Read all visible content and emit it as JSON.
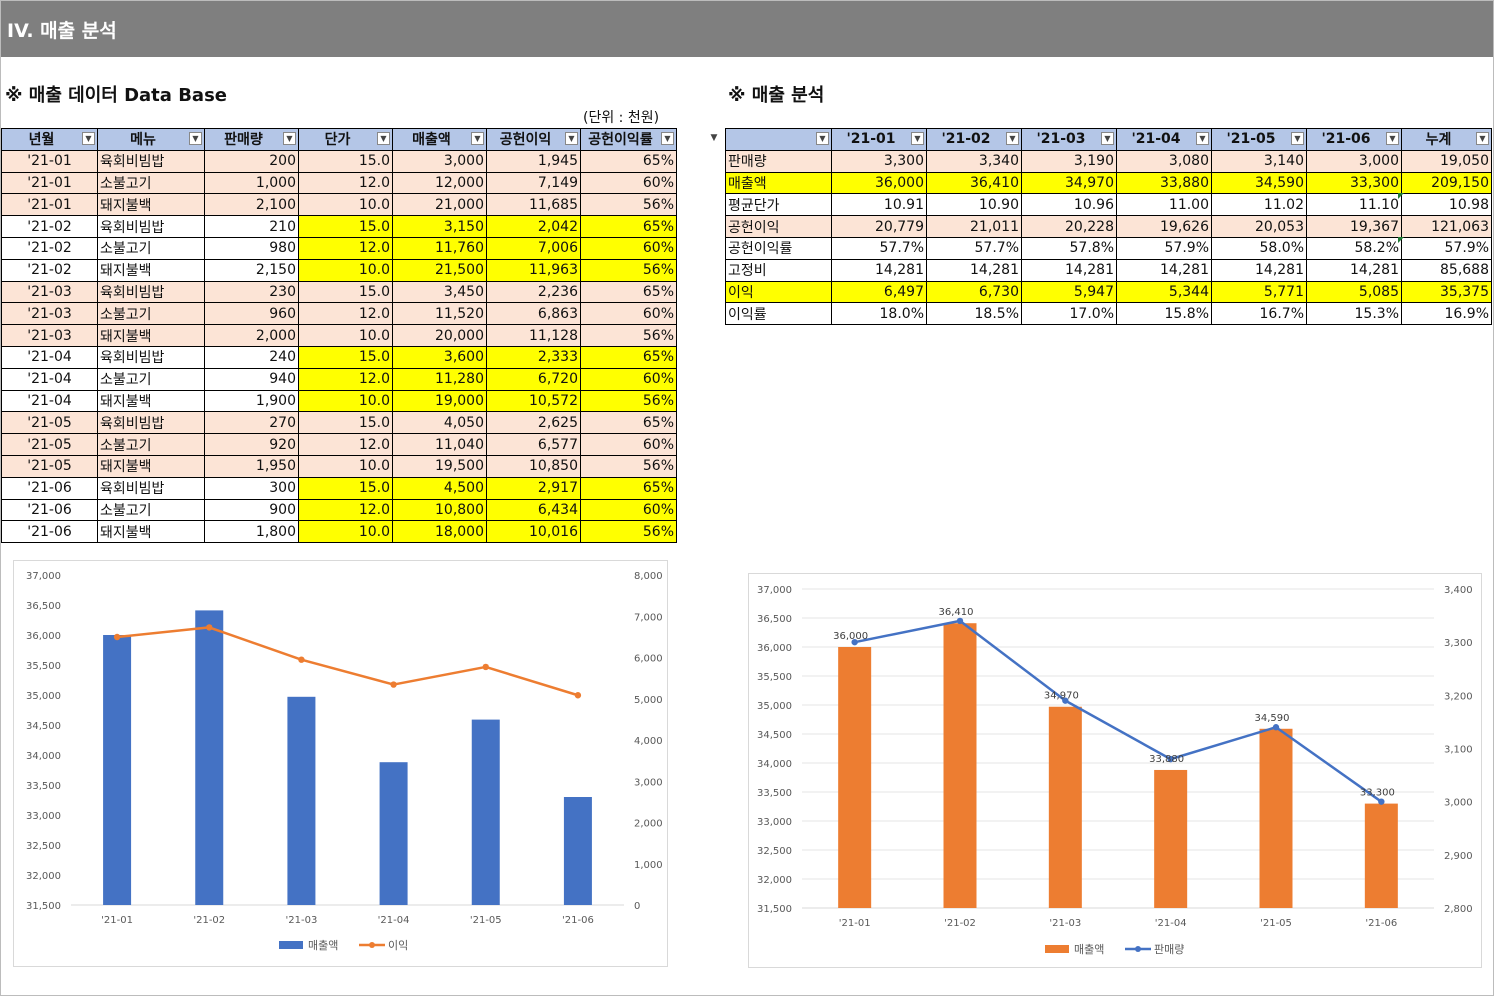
{
  "banner": {
    "title": "IV. 매출 분석"
  },
  "left_section": {
    "title": "※ 매출 데이터 Data Base",
    "unit": "(단위 : 천원)"
  },
  "right_section": {
    "title": "※ 매출 분석"
  },
  "db_table": {
    "headers": [
      "년월",
      "메뉴",
      "판매량",
      "단가",
      "매출액",
      "공헌이익",
      "공헌이익률"
    ],
    "rows": [
      [
        "'21-01",
        "육회비빔밥",
        "200",
        "15.0",
        "3,000",
        "1,945",
        "65%"
      ],
      [
        "'21-01",
        "소불고기",
        "1,000",
        "12.0",
        "12,000",
        "7,149",
        "60%"
      ],
      [
        "'21-01",
        "돼지불백",
        "2,100",
        "10.0",
        "21,000",
        "11,685",
        "56%"
      ],
      [
        "'21-02",
        "육회비빔밥",
        "210",
        "15.0",
        "3,150",
        "2,042",
        "65%"
      ],
      [
        "'21-02",
        "소불고기",
        "980",
        "12.0",
        "11,760",
        "7,006",
        "60%"
      ],
      [
        "'21-02",
        "돼지불백",
        "2,150",
        "10.0",
        "21,500",
        "11,963",
        "56%"
      ],
      [
        "'21-03",
        "육회비빔밥",
        "230",
        "15.0",
        "3,450",
        "2,236",
        "65%"
      ],
      [
        "'21-03",
        "소불고기",
        "960",
        "12.0",
        "11,520",
        "6,863",
        "60%"
      ],
      [
        "'21-03",
        "돼지불백",
        "2,000",
        "10.0",
        "20,000",
        "11,128",
        "56%"
      ],
      [
        "'21-04",
        "육회비빔밥",
        "240",
        "15.0",
        "3,600",
        "2,333",
        "65%"
      ],
      [
        "'21-04",
        "소불고기",
        "940",
        "12.0",
        "11,280",
        "6,720",
        "60%"
      ],
      [
        "'21-04",
        "돼지불백",
        "1,900",
        "10.0",
        "19,000",
        "10,572",
        "56%"
      ],
      [
        "'21-05",
        "육회비빔밥",
        "270",
        "15.0",
        "4,050",
        "2,625",
        "65%"
      ],
      [
        "'21-05",
        "소불고기",
        "920",
        "12.0",
        "11,040",
        "6,577",
        "60%"
      ],
      [
        "'21-05",
        "돼지불백",
        "1,950",
        "10.0",
        "19,500",
        "10,850",
        "56%"
      ],
      [
        "'21-06",
        "육회비빔밥",
        "300",
        "15.0",
        "4,500",
        "2,917",
        "65%"
      ],
      [
        "'21-06",
        "소불고기",
        "900",
        "12.0",
        "10,800",
        "6,434",
        "60%"
      ],
      [
        "'21-06",
        "돼지불백",
        "1,800",
        "10.0",
        "18,000",
        "10,016",
        "56%"
      ]
    ]
  },
  "summary_table": {
    "headers": [
      "",
      "'21-01",
      "'21-02",
      "'21-03",
      "'21-04",
      "'21-05",
      "'21-06",
      "누계"
    ],
    "rows": [
      {
        "label": "판매량",
        "values": [
          "3,300",
          "3,340",
          "3,190",
          "3,080",
          "3,140",
          "3,000",
          "19,050"
        ],
        "style": "pink"
      },
      {
        "label": "매출액",
        "values": [
          "36,000",
          "36,410",
          "34,970",
          "33,880",
          "34,590",
          "33,300",
          "209,150"
        ],
        "style": "yel"
      },
      {
        "label": "평균단가",
        "values": [
          "10.91",
          "10.90",
          "10.96",
          "11.00",
          "11.02",
          "11.10",
          "10.98"
        ],
        "style": ""
      },
      {
        "label": "공헌이익",
        "values": [
          "20,779",
          "21,011",
          "20,228",
          "19,626",
          "20,053",
          "19,367",
          "121,063"
        ],
        "style": "pink"
      },
      {
        "label": "공헌이익률",
        "values": [
          "57.7%",
          "57.7%",
          "57.8%",
          "57.9%",
          "58.0%",
          "58.2%",
          "57.9%"
        ],
        "style": ""
      },
      {
        "label": "고정비",
        "values": [
          "14,281",
          "14,281",
          "14,281",
          "14,281",
          "14,281",
          "14,281",
          "85,688"
        ],
        "style": ""
      },
      {
        "label": "이익",
        "values": [
          "6,497",
          "6,730",
          "5,947",
          "5,344",
          "5,771",
          "5,085",
          "35,375"
        ],
        "style": "yel"
      },
      {
        "label": "이익률",
        "values": [
          "18.0%",
          "18.5%",
          "17.0%",
          "15.8%",
          "16.7%",
          "15.3%",
          "16.9%"
        ],
        "style": ""
      }
    ]
  },
  "colors": {
    "blue_bar": "#4472c4",
    "orange": "#ed7d31",
    "pink": "#fce4d6",
    "yellow": "#ffff00",
    "header": "#b4c6e7"
  },
  "chart_data": [
    {
      "type": "bar",
      "categories": [
        "'21-01",
        "'21-02",
        "'21-03",
        "'21-04",
        "'21-05",
        "'21-06"
      ],
      "series": [
        {
          "name": "매출액",
          "type": "bar",
          "axis": "left",
          "color": "#4472c4",
          "values": [
            36000,
            36410,
            34970,
            33880,
            34590,
            33300
          ]
        },
        {
          "name": "이익",
          "type": "line",
          "axis": "right",
          "color": "#ed7d31",
          "values": [
            6497,
            6730,
            5947,
            5344,
            5771,
            5085
          ]
        }
      ],
      "ylim": [
        31500,
        37000
      ],
      "y_ticks": [
        "31,500",
        "32,000",
        "32,500",
        "33,000",
        "33,500",
        "34,000",
        "34,500",
        "35,000",
        "35,500",
        "36,000",
        "36,500",
        "37,000"
      ],
      "y2lim": [
        0,
        8000
      ],
      "y2_ticks": [
        "0",
        "1,000",
        "2,000",
        "3,000",
        "4,000",
        "5,000",
        "6,000",
        "7,000",
        "8,000"
      ],
      "legend": "bottom",
      "grid": false
    },
    {
      "type": "bar",
      "categories": [
        "'21-01",
        "'21-02",
        "'21-03",
        "'21-04",
        "'21-05",
        "'21-06"
      ],
      "series": [
        {
          "name": "매출액",
          "type": "bar",
          "axis": "left",
          "color": "#ed7d31",
          "values": [
            36000,
            36410,
            34970,
            33880,
            34590,
            33300
          ],
          "data_labels": [
            "36,000",
            "36,410",
            "34,970",
            "33,880",
            "34,590",
            "33,300"
          ]
        },
        {
          "name": "판매량",
          "type": "line",
          "axis": "right",
          "color": "#4472c4",
          "values": [
            3300,
            3340,
            3190,
            3080,
            3140,
            3000
          ]
        }
      ],
      "ylim": [
        31500,
        37000
      ],
      "y_ticks": [
        "31,500",
        "32,000",
        "32,500",
        "33,000",
        "33,500",
        "34,000",
        "34,500",
        "35,000",
        "35,500",
        "36,000",
        "36,500",
        "37,000"
      ],
      "y2lim": [
        2800,
        3400
      ],
      "y2_ticks": [
        "2,800",
        "2,900",
        "3,000",
        "3,100",
        "3,200",
        "3,300",
        "3,400"
      ],
      "legend": "bottom",
      "grid": true
    }
  ]
}
